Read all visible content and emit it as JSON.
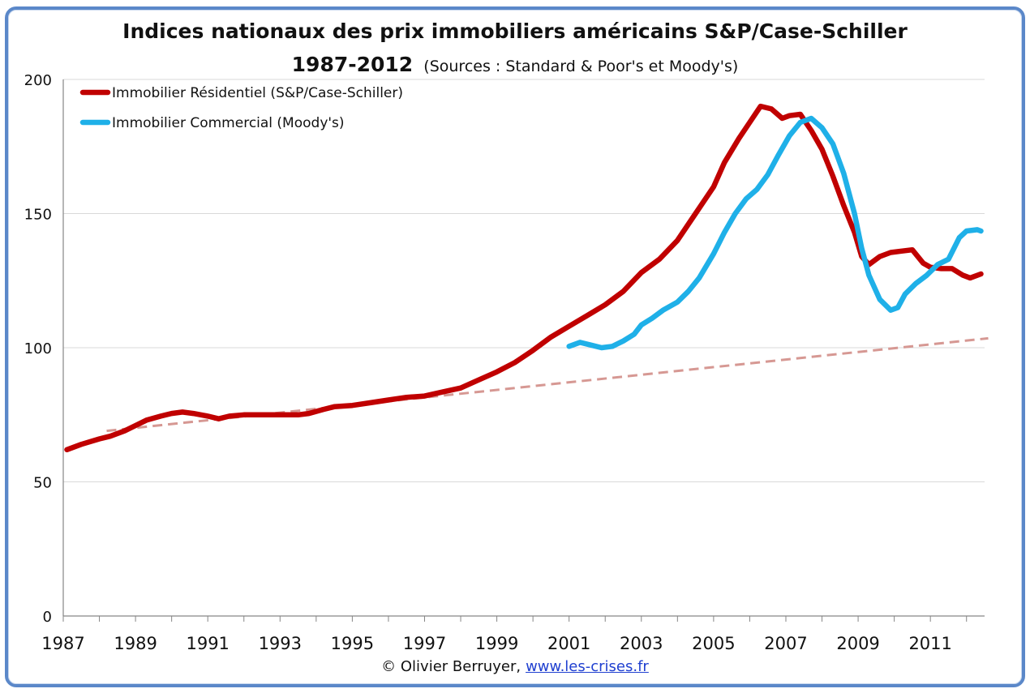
{
  "chart_data": {
    "type": "line",
    "title": "Indices nationaux des prix immobiliers américains S&P/Case-Schiller",
    "subtitle": "1987-2012",
    "source_note": "(Sources : Standard & Poor's et Moody's)",
    "xlabel": "",
    "ylabel": "",
    "xlim": [
      1987,
      2012.5
    ],
    "ylim": [
      0,
      200
    ],
    "xticks": [
      1987,
      1989,
      1991,
      1993,
      1995,
      1997,
      1999,
      2001,
      2003,
      2005,
      2007,
      2009,
      2011
    ],
    "yticks": [
      0,
      50,
      100,
      150,
      200
    ],
    "grid": "horizontal",
    "legend_position": "top-left",
    "series": [
      {
        "name": "Immobilier Résidentiel (S&P/Case-Schiller)",
        "color": "#c00000",
        "style": "solid",
        "x": [
          1987.1,
          1987.5,
          1988.0,
          1988.3,
          1988.7,
          1989.0,
          1989.3,
          1989.7,
          1990.0,
          1990.3,
          1990.6,
          1991.0,
          1991.3,
          1991.6,
          1992.0,
          1992.5,
          1993.0,
          1993.5,
          1993.8,
          1994.2,
          1994.5,
          1995.0,
          1995.5,
          1996.0,
          1996.5,
          1997.0,
          1997.5,
          1998.0,
          1998.5,
          1999.0,
          1999.5,
          2000.0,
          2000.5,
          2001.0,
          2001.5,
          2002.0,
          2002.5,
          2003.0,
          2003.5,
          2004.0,
          2004.5,
          2005.0,
          2005.3,
          2005.7,
          2006.0,
          2006.3,
          2006.6,
          2006.9,
          2007.1,
          2007.4,
          2007.7,
          2008.0,
          2008.3,
          2008.6,
          2008.9,
          2009.1,
          2009.3,
          2009.6,
          2009.9,
          2010.2,
          2010.5,
          2010.8,
          2011.0,
          2011.3,
          2011.6,
          2011.9,
          2012.1,
          2012.4
        ],
        "values": [
          62,
          64,
          66,
          67,
          69,
          71,
          73,
          74.5,
          75.5,
          76,
          75.5,
          74.5,
          73.5,
          74.5,
          75,
          75,
          75,
          75,
          75.5,
          77,
          78,
          78.5,
          79.5,
          80.5,
          81.5,
          82,
          83.5,
          85,
          88,
          91,
          94.5,
          99,
          104,
          108,
          112,
          116,
          121,
          128,
          133,
          140,
          150,
          160,
          169,
          178,
          184,
          190,
          189,
          185.5,
          186.5,
          187,
          181,
          174,
          164,
          153,
          143,
          134,
          131,
          134,
          135.5,
          136,
          136.5,
          131.5,
          130,
          129.5,
          129.5,
          127,
          126,
          127.5
        ]
      },
      {
        "name": "Immobilier Commercial (Moody's)",
        "color": "#1fb0e8",
        "style": "solid",
        "x": [
          2001.0,
          2001.3,
          2001.6,
          2001.9,
          2002.2,
          2002.5,
          2002.8,
          2003.0,
          2003.3,
          2003.6,
          2004.0,
          2004.3,
          2004.6,
          2005.0,
          2005.3,
          2005.6,
          2005.9,
          2006.2,
          2006.5,
          2006.8,
          2007.1,
          2007.4,
          2007.7,
          2008.0,
          2008.3,
          2008.6,
          2008.9,
          2009.1,
          2009.3,
          2009.6,
          2009.9,
          2010.1,
          2010.3,
          2010.6,
          2010.9,
          2011.2,
          2011.5,
          2011.8,
          2012.0,
          2012.3,
          2012.4
        ],
        "values": [
          100.5,
          102,
          101,
          100,
          100.5,
          102.5,
          105,
          108.5,
          111,
          114,
          117,
          121,
          126,
          135,
          143,
          150,
          155.5,
          159,
          164.5,
          172,
          179,
          184,
          185.5,
          182,
          176,
          165,
          150,
          137,
          127,
          118,
          114,
          115,
          120,
          124,
          127,
          131,
          133,
          141,
          143.5,
          144,
          143.5
        ]
      },
      {
        "name": "",
        "color": "#d69893",
        "style": "dashed",
        "x": [
          1988.2,
          2012.6
        ],
        "values": [
          69,
          103.5
        ]
      }
    ]
  },
  "footer": {
    "credit": "© Olivier Berruyer,",
    "link_text": "www.les-crises.fr"
  }
}
